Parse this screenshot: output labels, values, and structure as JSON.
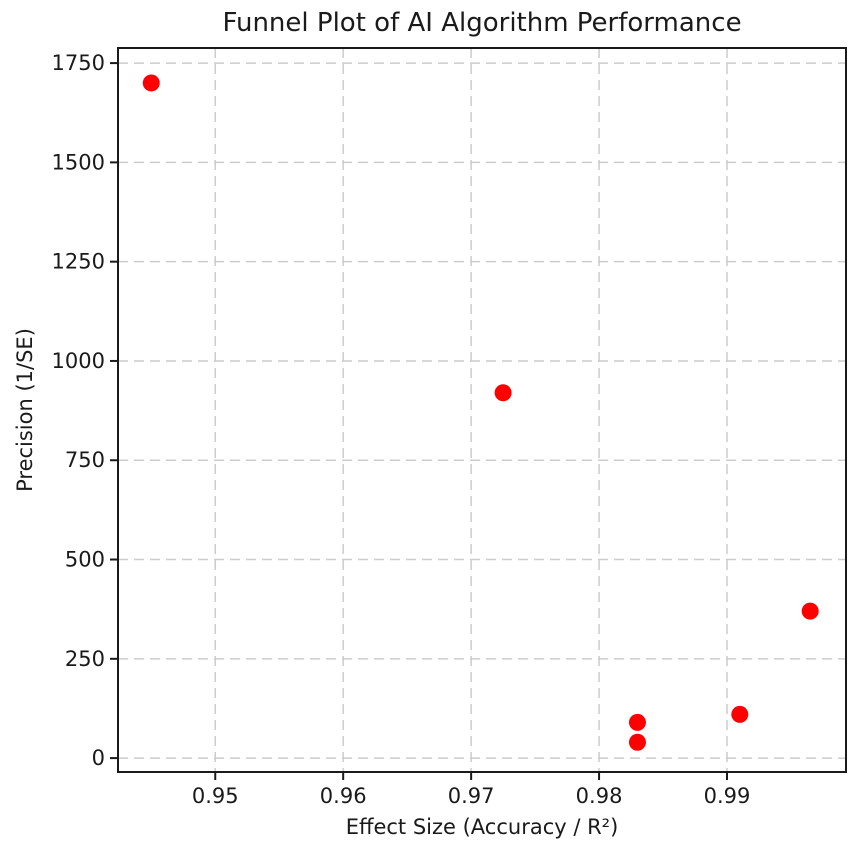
{
  "chart_data": {
    "type": "scatter",
    "title": "Funnel Plot of AI Algorithm Performance",
    "xlabel": "Effect Size (Accuracy / R²)",
    "ylabel": "Precision (1/SE)",
    "xlim": [
      0.9424,
      0.9993
    ],
    "ylim": [
      -35,
      1788
    ],
    "x_ticks": [
      0.95,
      0.96,
      0.97,
      0.98,
      0.99
    ],
    "x_tick_labels": [
      "0.95",
      "0.96",
      "0.97",
      "0.98",
      "0.99"
    ],
    "y_ticks": [
      0,
      250,
      500,
      750,
      1000,
      1250,
      1500,
      1750
    ],
    "y_tick_labels": [
      "0",
      "250",
      "500",
      "750",
      "1000",
      "1250",
      "1500",
      "1750"
    ],
    "grid": true,
    "grid_style": "dashed",
    "legend_position": "none",
    "points": [
      {
        "x": 0.945,
        "y": 1700
      },
      {
        "x": 0.9725,
        "y": 920
      },
      {
        "x": 0.983,
        "y": 90
      },
      {
        "x": 0.983,
        "y": 40
      },
      {
        "x": 0.991,
        "y": 110
      },
      {
        "x": 0.9965,
        "y": 370
      }
    ],
    "marker_color": "#ff0000",
    "grid_color": "#cccccc",
    "spine_color": "#1a1a1a",
    "tick_color": "#1a1a1a",
    "text_color": "#1a1a1a",
    "background_color": "#ffffff"
  }
}
